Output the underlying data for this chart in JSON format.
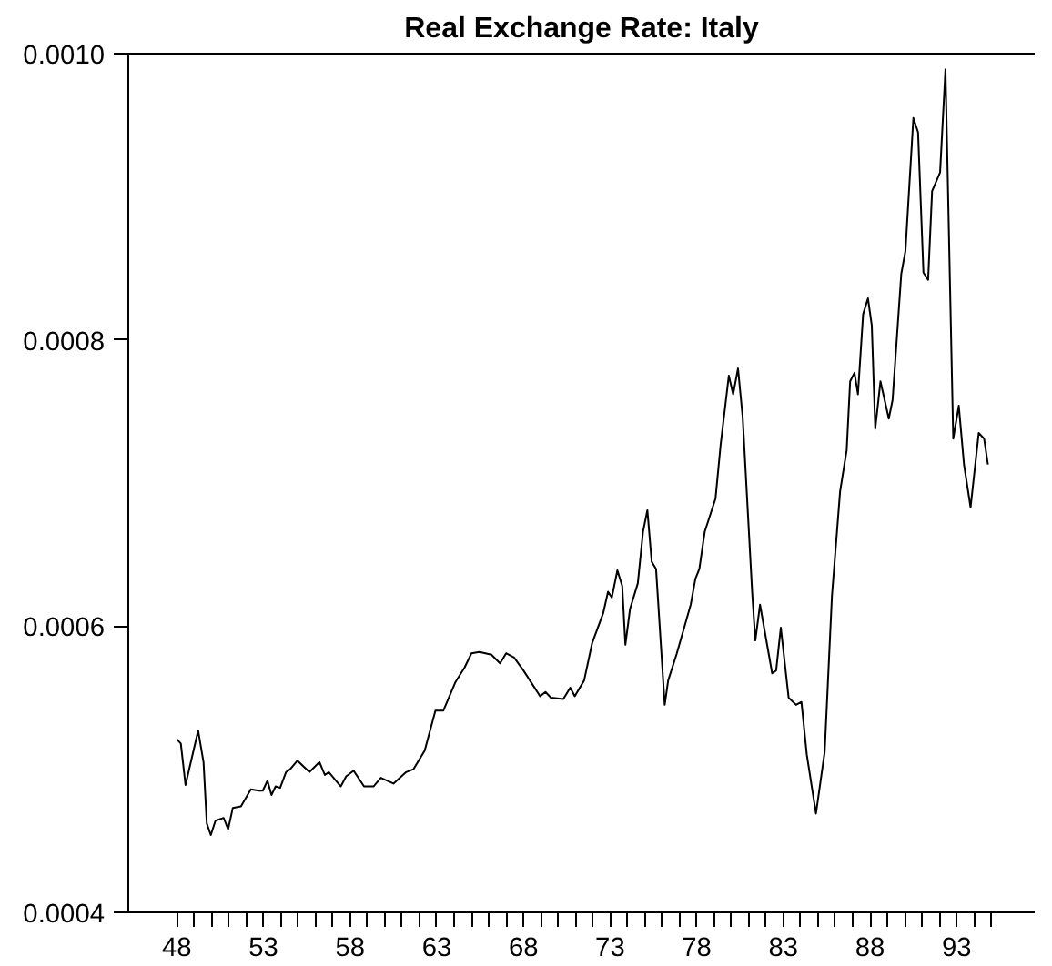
{
  "chart_data": {
    "type": "line",
    "title": "Real Exchange Rate: Italy",
    "x": [
      48.0,
      48.23,
      48.5,
      49.23,
      49.54,
      49.73,
      49.96,
      50.23,
      50.7,
      50.96,
      51.23,
      51.7,
      52.27,
      52.73,
      52.96,
      53.23,
      53.46,
      53.7,
      53.96,
      54.3,
      54.54,
      54.96,
      55.65,
      56.23,
      56.54,
      56.77,
      57.46,
      57.77,
      58.2,
      58.8,
      59.35,
      59.77,
      60.5,
      61.23,
      61.65,
      62.3,
      62.92,
      63.38,
      64.08,
      64.6,
      65.0,
      65.46,
      66.15,
      66.65,
      67.0,
      67.46,
      68.0,
      68.96,
      69.27,
      69.58,
      70.3,
      70.7,
      70.96,
      71.5,
      71.96,
      72.6,
      72.88,
      73.1,
      73.42,
      73.7,
      73.88,
      74.15,
      74.6,
      74.9,
      75.15,
      75.4,
      75.65,
      76.15,
      76.35,
      76.85,
      77.3,
      77.65,
      77.92,
      78.15,
      78.46,
      79.08,
      79.38,
      79.85,
      80.1,
      80.38,
      80.65,
      81.2,
      81.38,
      81.65,
      82.35,
      82.58,
      82.85,
      83.3,
      83.73,
      84.04,
      84.35,
      84.88,
      85.38,
      85.8,
      86.27,
      86.65,
      86.85,
      87.1,
      87.3,
      87.6,
      87.88,
      88.1,
      88.3,
      88.6,
      89.08,
      89.3,
      89.8,
      90.04,
      90.5,
      90.77,
      91.08,
      91.35,
      91.58,
      92.04,
      92.35,
      92.8,
      93.12,
      93.42,
      93.8,
      94.27,
      94.58,
      94.8
    ],
    "series": [
      {
        "color": "#000000",
        "values": [
          0.000521,
          0.000518,
          0.000489,
          0.000527,
          0.000505,
          0.000462,
          0.000454,
          0.000464,
          0.000466,
          0.000458,
          0.000473,
          0.000474,
          0.000486,
          0.000485,
          0.000485,
          0.000492,
          0.000482,
          0.000488,
          0.000487,
          0.000498,
          0.0005,
          0.000506,
          0.000498,
          0.000505,
          0.000496,
          0.000498,
          0.000488,
          0.000495,
          0.000499,
          0.000488,
          0.000488,
          0.000494,
          0.00049,
          0.000498,
          0.0005,
          0.000513,
          0.000541,
          0.000541,
          0.000561,
          0.000571,
          0.000581,
          0.000582,
          0.00058,
          0.000574,
          0.000581,
          0.000578,
          0.000569,
          0.000551,
          0.000554,
          0.00055,
          0.000549,
          0.000557,
          0.000551,
          0.000562,
          0.000588,
          0.000609,
          0.000624,
          0.00062,
          0.000639,
          0.000628,
          0.000587,
          0.000612,
          0.00063,
          0.000666,
          0.000681,
          0.000645,
          0.00064,
          0.000545,
          0.000562,
          0.000581,
          0.0006,
          0.000615,
          0.000633,
          0.00064,
          0.000666,
          0.000689,
          0.000727,
          0.000775,
          0.000762,
          0.00078,
          0.000746,
          0.000623,
          0.00059,
          0.000615,
          0.000567,
          0.000569,
          0.000599,
          0.00055,
          0.000545,
          0.000547,
          0.00051,
          0.000469,
          0.000512,
          0.000621,
          0.000694,
          0.000723,
          0.000771,
          0.000777,
          0.000762,
          0.000818,
          0.000829,
          0.00081,
          0.000738,
          0.000771,
          0.000745,
          0.000758,
          0.000846,
          0.000862,
          0.000955,
          0.000945,
          0.000847,
          0.000842,
          0.000904,
          0.000917,
          0.000989,
          0.000731,
          0.000754,
          0.000713,
          0.000683,
          0.000735,
          0.000731,
          0.000713
        ]
      }
    ],
    "xlim": [
      45.2,
      97.5
    ],
    "ylim": [
      0.0004,
      0.001
    ],
    "xticks": [
      {
        "value": 48,
        "label": "48"
      },
      {
        "value": 49,
        "label": null
      },
      {
        "value": 50,
        "label": null
      },
      {
        "value": 51,
        "label": null
      },
      {
        "value": 52,
        "label": null
      },
      {
        "value": 53,
        "label": "53"
      },
      {
        "value": 54,
        "label": null
      },
      {
        "value": 55,
        "label": null
      },
      {
        "value": 56,
        "label": null
      },
      {
        "value": 57,
        "label": null
      },
      {
        "value": 58,
        "label": "58"
      },
      {
        "value": 59,
        "label": null
      },
      {
        "value": 60,
        "label": null
      },
      {
        "value": 61,
        "label": null
      },
      {
        "value": 62,
        "label": null
      },
      {
        "value": 63,
        "label": "63"
      },
      {
        "value": 64,
        "label": null
      },
      {
        "value": 65,
        "label": null
      },
      {
        "value": 66,
        "label": null
      },
      {
        "value": 67,
        "label": null
      },
      {
        "value": 68,
        "label": "68"
      },
      {
        "value": 69,
        "label": null
      },
      {
        "value": 70,
        "label": null
      },
      {
        "value": 71,
        "label": null
      },
      {
        "value": 72,
        "label": null
      },
      {
        "value": 73,
        "label": "73"
      },
      {
        "value": 74,
        "label": null
      },
      {
        "value": 75,
        "label": null
      },
      {
        "value": 76,
        "label": null
      },
      {
        "value": 77,
        "label": null
      },
      {
        "value": 78,
        "label": "78"
      },
      {
        "value": 79,
        "label": null
      },
      {
        "value": 80,
        "label": null
      },
      {
        "value": 81,
        "label": null
      },
      {
        "value": 82,
        "label": null
      },
      {
        "value": 83,
        "label": "83"
      },
      {
        "value": 84,
        "label": null
      },
      {
        "value": 85,
        "label": null
      },
      {
        "value": 86,
        "label": null
      },
      {
        "value": 87,
        "label": null
      },
      {
        "value": 88,
        "label": "88"
      },
      {
        "value": 89,
        "label": null
      },
      {
        "value": 90,
        "label": null
      },
      {
        "value": 91,
        "label": null
      },
      {
        "value": 92,
        "label": null
      },
      {
        "value": 93,
        "label": "93"
      },
      {
        "value": 94,
        "label": null
      },
      {
        "value": 95,
        "label": null
      }
    ],
    "yticks": [
      {
        "value": 0.0004,
        "label": "0.0004"
      },
      {
        "value": 0.0006,
        "label": "0.0006"
      },
      {
        "value": 0.0008,
        "label": "0.0008"
      },
      {
        "value": 0.001,
        "label": "0.0010"
      }
    ],
    "grid": false,
    "line_style": "solid",
    "marker": "none"
  }
}
